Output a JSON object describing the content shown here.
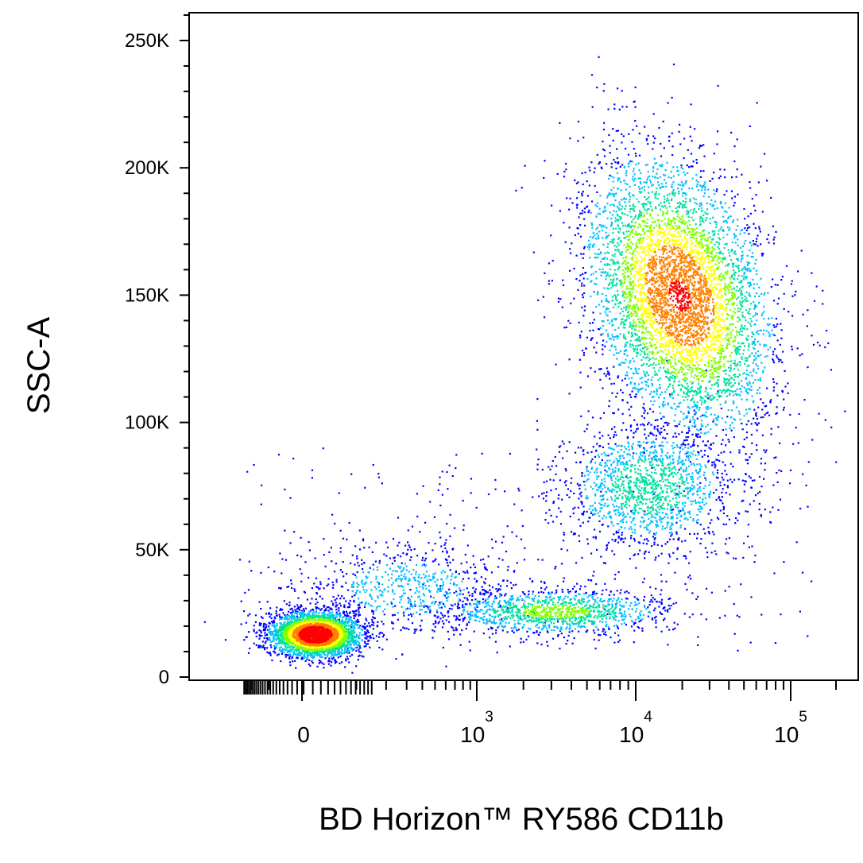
{
  "chart_data": {
    "type": "scatter",
    "subtype": "flow-cytometry density dot plot",
    "xlabel": "BD Horizon™ RY586 CD11b",
    "ylabel": "SSC-A",
    "x_scale": "biexponential",
    "y_scale": "linear",
    "ylim": [
      0,
      262144
    ],
    "xlim": [
      -300,
      200000
    ],
    "y_ticks": [
      {
        "value": 0,
        "label": "0"
      },
      {
        "value": 50000,
        "label": "50K"
      },
      {
        "value": 100000,
        "label": "100K"
      },
      {
        "value": 150000,
        "label": "150K"
      },
      {
        "value": 200000,
        "label": "200K"
      },
      {
        "value": 250000,
        "label": "250K"
      }
    ],
    "x_ticks": [
      {
        "value": 0,
        "base": "0",
        "exponent": ""
      },
      {
        "value": 1000,
        "base": "10",
        "exponent": "3"
      },
      {
        "value": 10000,
        "base": "10",
        "exponent": "4"
      },
      {
        "value": 100000,
        "base": "10",
        "exponent": "5"
      }
    ],
    "density_colors": [
      "#0000ff",
      "#00bfff",
      "#00e0a0",
      "#7fff00",
      "#ffff00",
      "#ff8000",
      "#ff0000"
    ],
    "populations": [
      {
        "cx": 30,
        "cy": 17000,
        "count": 3400,
        "spread_x": 70,
        "spread_y": 5000
      },
      {
        "cx": 2500,
        "cy": 26000,
        "count": 1100,
        "spread_x": 2500,
        "spread_y": 5000
      },
      {
        "cx": 15000,
        "cy": 150000,
        "count": 5200,
        "spread_x": 9000,
        "spread_y": 30000
      },
      {
        "cx": 12000,
        "cy": 75000,
        "count": 1500,
        "spread_x": 8000,
        "spread_y": 15000
      },
      {
        "cx": 300,
        "cy": 35000,
        "count": 700,
        "spread_x": 400,
        "spread_y": 12000
      }
    ],
    "grid": false,
    "legend": "none"
  }
}
